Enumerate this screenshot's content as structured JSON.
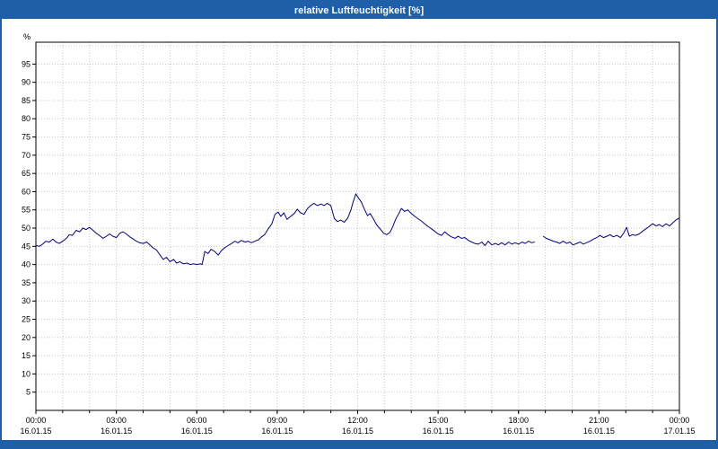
{
  "window": {
    "title": "relative Luftfeuchtigkeit [%]"
  },
  "colors": {
    "frame": "#1e5fa8",
    "title_bar": "#1e5fa8",
    "title_text": "#ffffff",
    "footer": "#1e5fa8",
    "line": "#00008b",
    "grid": "#c8c8c8",
    "axis": "#000000",
    "tick_text": "#000000",
    "background": "#ffffff"
  },
  "chart_data": {
    "type": "line",
    "title": "relative Luftfeuchtigkeit [%]",
    "xlabel": "",
    "ylabel": "%",
    "ylim": [
      0,
      101
    ],
    "x_range_minutes": [
      0,
      1440
    ],
    "x_minor_step_minutes": 60,
    "grid": true,
    "legend": "none",
    "y_ticks": [
      5,
      10,
      15,
      20,
      25,
      30,
      35,
      40,
      45,
      50,
      55,
      60,
      65,
      70,
      75,
      80,
      85,
      90,
      95
    ],
    "y_grid_values": [
      5,
      10,
      15,
      20,
      25,
      30,
      35,
      40,
      45,
      50,
      55,
      60,
      65,
      70,
      75,
      80,
      85,
      90,
      95,
      100
    ],
    "x_ticks": [
      {
        "minutes": 0,
        "time": "00:00",
        "date": "16.01.15"
      },
      {
        "minutes": 180,
        "time": "03:00",
        "date": "16.01.15"
      },
      {
        "minutes": 360,
        "time": "06:00",
        "date": "16.01.15"
      },
      {
        "minutes": 540,
        "time": "09:00",
        "date": "16.01.15"
      },
      {
        "minutes": 720,
        "time": "12:00",
        "date": "16.01.15"
      },
      {
        "minutes": 900,
        "time": "15:00",
        "date": "16.01.15"
      },
      {
        "minutes": 1080,
        "time": "18:00",
        "date": "16.01.15"
      },
      {
        "minutes": 1260,
        "time": "21:00",
        "date": "16.01.15"
      },
      {
        "minutes": 1440,
        "time": "00:00",
        "date": "17.01.15"
      }
    ],
    "series": [
      {
        "name": "relative Luftfeuchtigkeit",
        "color": "#00008b",
        "points": [
          [
            0,
            45.2
          ],
          [
            8,
            45.0
          ],
          [
            15,
            45.6
          ],
          [
            22,
            46.4
          ],
          [
            30,
            46.2
          ],
          [
            38,
            47.0
          ],
          [
            45,
            46.2
          ],
          [
            52,
            45.8
          ],
          [
            60,
            46.4
          ],
          [
            68,
            47.2
          ],
          [
            75,
            48.2
          ],
          [
            82,
            48.0
          ],
          [
            90,
            49.4
          ],
          [
            98,
            49.0
          ],
          [
            105,
            50.0
          ],
          [
            112,
            49.6
          ],
          [
            120,
            50.2
          ],
          [
            128,
            49.4
          ],
          [
            135,
            48.6
          ],
          [
            142,
            48.0
          ],
          [
            150,
            47.2
          ],
          [
            158,
            47.8
          ],
          [
            165,
            48.4
          ],
          [
            172,
            47.8
          ],
          [
            180,
            47.4
          ],
          [
            188,
            48.6
          ],
          [
            195,
            49.0
          ],
          [
            202,
            48.4
          ],
          [
            210,
            47.6
          ],
          [
            218,
            47.0
          ],
          [
            225,
            46.4
          ],
          [
            232,
            46.0
          ],
          [
            240,
            45.8
          ],
          [
            248,
            46.2
          ],
          [
            255,
            45.4
          ],
          [
            262,
            44.6
          ],
          [
            270,
            44.0
          ],
          [
            278,
            42.6
          ],
          [
            285,
            41.4
          ],
          [
            292,
            42.0
          ],
          [
            300,
            40.8
          ],
          [
            308,
            41.4
          ],
          [
            315,
            40.4
          ],
          [
            322,
            40.8
          ],
          [
            330,
            40.2
          ],
          [
            338,
            40.4
          ],
          [
            345,
            40.0
          ],
          [
            352,
            40.2
          ],
          [
            360,
            40.0
          ],
          [
            368,
            40.2
          ],
          [
            372,
            40.0
          ],
          [
            378,
            43.6
          ],
          [
            385,
            43.0
          ],
          [
            392,
            44.2
          ],
          [
            400,
            43.6
          ],
          [
            408,
            42.6
          ],
          [
            415,
            43.8
          ],
          [
            422,
            44.6
          ],
          [
            430,
            45.2
          ],
          [
            438,
            45.8
          ],
          [
            445,
            46.4
          ],
          [
            452,
            46.0
          ],
          [
            460,
            46.6
          ],
          [
            468,
            46.2
          ],
          [
            475,
            46.4
          ],
          [
            482,
            46.0
          ],
          [
            490,
            46.4
          ],
          [
            498,
            46.8
          ],
          [
            505,
            47.6
          ],
          [
            512,
            48.2
          ],
          [
            520,
            49.8
          ],
          [
            528,
            51.2
          ],
          [
            535,
            53.8
          ],
          [
            542,
            54.4
          ],
          [
            548,
            53.2
          ],
          [
            555,
            54.2
          ],
          [
            562,
            52.4
          ],
          [
            570,
            53.2
          ],
          [
            578,
            54.0
          ],
          [
            585,
            55.2
          ],
          [
            592,
            54.2
          ],
          [
            600,
            53.8
          ],
          [
            608,
            55.4
          ],
          [
            615,
            56.2
          ],
          [
            622,
            56.8
          ],
          [
            630,
            56.2
          ],
          [
            638,
            56.6
          ],
          [
            645,
            56.2
          ],
          [
            652,
            56.8
          ],
          [
            660,
            56.2
          ],
          [
            668,
            52.6
          ],
          [
            675,
            51.8
          ],
          [
            682,
            52.2
          ],
          [
            690,
            51.6
          ],
          [
            698,
            52.8
          ],
          [
            705,
            55.0
          ],
          [
            710,
            57.2
          ],
          [
            716,
            59.4
          ],
          [
            722,
            58.2
          ],
          [
            728,
            57.2
          ],
          [
            735,
            55.2
          ],
          [
            742,
            53.4
          ],
          [
            748,
            54.0
          ],
          [
            755,
            52.6
          ],
          [
            762,
            51.0
          ],
          [
            770,
            49.8
          ],
          [
            778,
            48.6
          ],
          [
            785,
            48.2
          ],
          [
            792,
            48.8
          ],
          [
            798,
            50.2
          ],
          [
            805,
            52.4
          ],
          [
            812,
            54.0
          ],
          [
            818,
            55.4
          ],
          [
            825,
            54.6
          ],
          [
            832,
            55.0
          ],
          [
            840,
            54.0
          ],
          [
            848,
            53.2
          ],
          [
            855,
            52.6
          ],
          [
            862,
            52.0
          ],
          [
            870,
            51.2
          ],
          [
            878,
            50.4
          ],
          [
            885,
            49.8
          ],
          [
            892,
            49.2
          ],
          [
            900,
            48.4
          ],
          [
            908,
            48.0
          ],
          [
            915,
            49.0
          ],
          [
            922,
            48.2
          ],
          [
            930,
            47.6
          ],
          [
            938,
            47.2
          ],
          [
            945,
            47.8
          ],
          [
            952,
            47.2
          ],
          [
            960,
            47.4
          ],
          [
            968,
            46.6
          ],
          [
            975,
            46.2
          ],
          [
            982,
            45.8
          ],
          [
            990,
            45.6
          ],
          [
            998,
            46.2
          ],
          [
            1005,
            45.2
          ],
          [
            1012,
            46.4
          ],
          [
            1020,
            45.4
          ],
          [
            1028,
            45.8
          ],
          [
            1035,
            45.4
          ],
          [
            1042,
            46.0
          ],
          [
            1050,
            45.4
          ],
          [
            1058,
            46.2
          ],
          [
            1065,
            45.6
          ],
          [
            1072,
            46.0
          ],
          [
            1080,
            45.6
          ],
          [
            1088,
            46.2
          ],
          [
            1095,
            45.8
          ],
          [
            1102,
            46.4
          ],
          [
            1110,
            46.0
          ],
          [
            1116,
            46.2
          ],
          [
            1120,
            null
          ],
          [
            1135,
            47.8
          ],
          [
            1142,
            47.2
          ],
          [
            1150,
            46.8
          ],
          [
            1158,
            46.4
          ],
          [
            1165,
            46.2
          ],
          [
            1172,
            45.8
          ],
          [
            1180,
            46.4
          ],
          [
            1188,
            45.8
          ],
          [
            1195,
            46.2
          ],
          [
            1202,
            45.4
          ],
          [
            1210,
            45.8
          ],
          [
            1218,
            46.2
          ],
          [
            1225,
            45.6
          ],
          [
            1232,
            46.0
          ],
          [
            1240,
            46.4
          ],
          [
            1248,
            47.0
          ],
          [
            1255,
            47.4
          ],
          [
            1262,
            48.0
          ],
          [
            1270,
            47.4
          ],
          [
            1278,
            47.8
          ],
          [
            1285,
            48.2
          ],
          [
            1292,
            47.6
          ],
          [
            1300,
            48.0
          ],
          [
            1308,
            47.4
          ],
          [
            1315,
            48.6
          ],
          [
            1322,
            50.2
          ],
          [
            1328,
            47.8
          ],
          [
            1335,
            48.2
          ],
          [
            1342,
            48.0
          ],
          [
            1350,
            48.4
          ],
          [
            1358,
            49.2
          ],
          [
            1365,
            49.8
          ],
          [
            1372,
            50.4
          ],
          [
            1380,
            51.2
          ],
          [
            1388,
            50.6
          ],
          [
            1395,
            51.0
          ],
          [
            1402,
            50.4
          ],
          [
            1410,
            51.2
          ],
          [
            1418,
            50.6
          ],
          [
            1425,
            51.4
          ],
          [
            1432,
            52.2
          ],
          [
            1440,
            52.8
          ]
        ]
      }
    ]
  }
}
